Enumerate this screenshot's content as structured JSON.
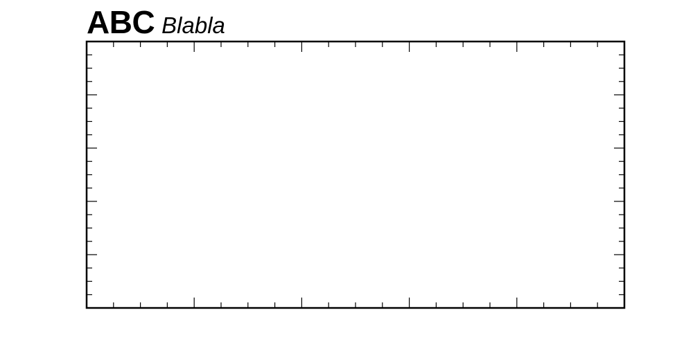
{
  "chart_data": {
    "type": "line",
    "title_bold": "ABC",
    "title_italic": "Blabla",
    "xlabel": "",
    "ylabel": "",
    "series": [],
    "x_major_ticks": 5,
    "x_minor_per_major": 4,
    "y_major_ticks": 5,
    "y_minor_per_major": 4,
    "tick_labels_visible": false,
    "grid": false,
    "legend": "none",
    "frame_color": "#000000",
    "background_color": "#ffffff"
  }
}
